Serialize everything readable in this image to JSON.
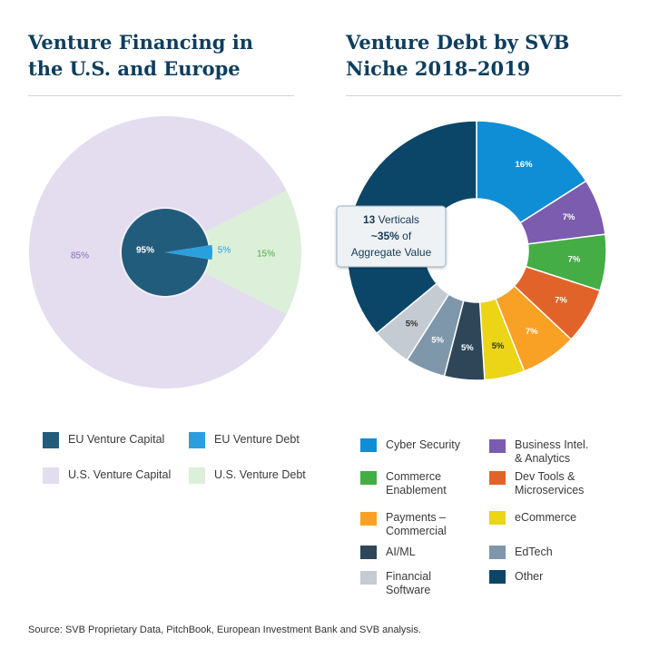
{
  "left": {
    "title_line1": "Venture Financing in",
    "title_line2": "the U.S. and Europe"
  },
  "right": {
    "title_line1": "Venture Debt by SVB",
    "title_line2": "Niche 2018–2019"
  },
  "source": "Source: SVB Proprietary Data, PitchBook, European Investment Bank and SVB analysis.",
  "chart_data": [
    {
      "type": "pie",
      "title": "Venture Financing in the U.S. and Europe",
      "outer_pie": [
        {
          "name": "U.S. Venture Capital",
          "value": 85,
          "label": "85%",
          "color": "#e3ddef"
        },
        {
          "name": "U.S. Venture Debt",
          "value": 15,
          "label": "15%",
          "color": "#dcefd9"
        }
      ],
      "inner_pie": [
        {
          "name": "EU Venture Capital",
          "value": 95,
          "label": "95%",
          "color": "#225c7c"
        },
        {
          "name": "EU Venture Debt",
          "value": 5,
          "label": "5%",
          "color": "#2a9fdd"
        }
      ],
      "legend": [
        {
          "name": "EU Venture Capital",
          "color": "#225c7c"
        },
        {
          "name": "EU Venture Debt",
          "color": "#2a9fdd"
        },
        {
          "name": "U.S. Venture Capital",
          "color": "#e3ddef"
        },
        {
          "name": "U.S. Venture Debt",
          "color": "#dcefd9"
        }
      ]
    },
    {
      "type": "pie",
      "title": "Venture Debt by SVB Niche 2018–2019",
      "donut": true,
      "slices": [
        {
          "name": "Cyber Security",
          "value": 16,
          "label": "16%",
          "color": "#0f8ed6"
        },
        {
          "name": "Business Intel. & Analytics",
          "value": 7,
          "label": "7%",
          "color": "#7c5caf"
        },
        {
          "name": "Commerce Enablement",
          "value": 7,
          "label": "7%",
          "color": "#44ad45"
        },
        {
          "name": "Dev Tools & Microservices",
          "value": 7,
          "label": "7%",
          "color": "#e2632a"
        },
        {
          "name": "Payments – Commercial",
          "value": 7,
          "label": "7%",
          "color": "#f8a124"
        },
        {
          "name": "eCommerce",
          "value": 5,
          "label": "5%",
          "color": "#ebd516"
        },
        {
          "name": "AI/ML",
          "value": 5,
          "label": "5%",
          "color": "#2e4657"
        },
        {
          "name": "EdTech",
          "value": 5,
          "label": "5%",
          "color": "#7e97ab"
        },
        {
          "name": "Financial Software",
          "value": 5,
          "label": "5%",
          "color": "#c5cbd3"
        },
        {
          "name": "Other",
          "value": 36,
          "label": "",
          "color": "#0b4668"
        }
      ],
      "annotation": {
        "bold": "13",
        "line1_rest": " Verticals",
        "line2_bold": "~35%",
        "line2_rest": " of",
        "line3": "Aggregate Value"
      },
      "legend": [
        {
          "name_line1": "Cyber Security",
          "name_line2": "",
          "color": "#0f8ed6"
        },
        {
          "name_line1": "Business Intel.",
          "name_line2": "& Analytics",
          "color": "#7c5caf"
        },
        {
          "name_line1": "Commerce",
          "name_line2": "Enablement",
          "color": "#44ad45"
        },
        {
          "name_line1": "Dev Tools &",
          "name_line2": "Microservices",
          "color": "#e2632a"
        },
        {
          "name_line1": "Payments –",
          "name_line2": "Commercial",
          "color": "#f8a124"
        },
        {
          "name_line1": "eCommerce",
          "name_line2": "",
          "color": "#ebd516"
        },
        {
          "name_line1": "AI/ML",
          "name_line2": "",
          "color": "#2e4657"
        },
        {
          "name_line1": "EdTech",
          "name_line2": "",
          "color": "#7e97ab"
        },
        {
          "name_line1": "Financial",
          "name_line2": "Software",
          "color": "#c5cbd3"
        },
        {
          "name_line1": "Other",
          "name_line2": "",
          "color": "#0b4668"
        }
      ]
    }
  ]
}
